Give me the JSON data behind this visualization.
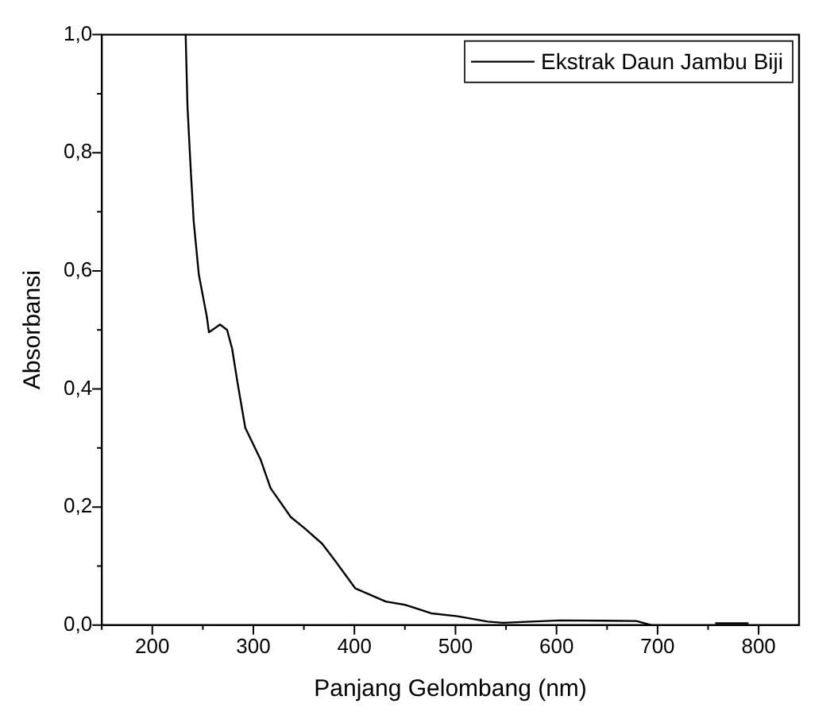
{
  "chart_data": {
    "type": "line",
    "xlabel": "Panjang Gelombang (nm)",
    "ylabel": "Absorbansi",
    "x": [
      233,
      234.8,
      238,
      241,
      246,
      254,
      256,
      267,
      274,
      279,
      284,
      292,
      307,
      317,
      337,
      350,
      368,
      380,
      401,
      431,
      451,
      476,
      502,
      532,
      547,
      603,
      679,
      694,
      720,
      757,
      790
    ],
    "series": [
      {
        "name": "Ekstrak Daun Jambu Biji",
        "color": "#000000",
        "values": [
          1.0,
          0.879,
          0.772,
          0.683,
          0.594,
          0.522,
          0.496,
          0.509,
          0.5,
          0.468,
          0.414,
          0.334,
          0.281,
          0.232,
          0.183,
          0.165,
          0.138,
          0.111,
          0.062,
          0.04,
          0.034,
          0.02,
          0.015,
          0.006,
          0.004,
          0.008,
          0.007,
          0.0,
          null,
          0.003,
          0.003
        ]
      }
    ],
    "xlim": [
      150,
      840
    ],
    "xticks": [
      200,
      300,
      400,
      500,
      600,
      700,
      800
    ],
    "ylim": [
      0,
      1.0
    ],
    "yticks": [
      {
        "value": 0,
        "label": "0,0"
      },
      {
        "value": 0.2,
        "label": "0,2"
      },
      {
        "value": 0.4,
        "label": "0,4"
      },
      {
        "value": 0.6,
        "label": "0,6"
      },
      {
        "value": 0.8,
        "label": "0,8"
      },
      {
        "value": 1.0,
        "label": "1,0"
      }
    ],
    "grid": false,
    "legend": "top right",
    "marker": "none",
    "line_style": "solid"
  }
}
